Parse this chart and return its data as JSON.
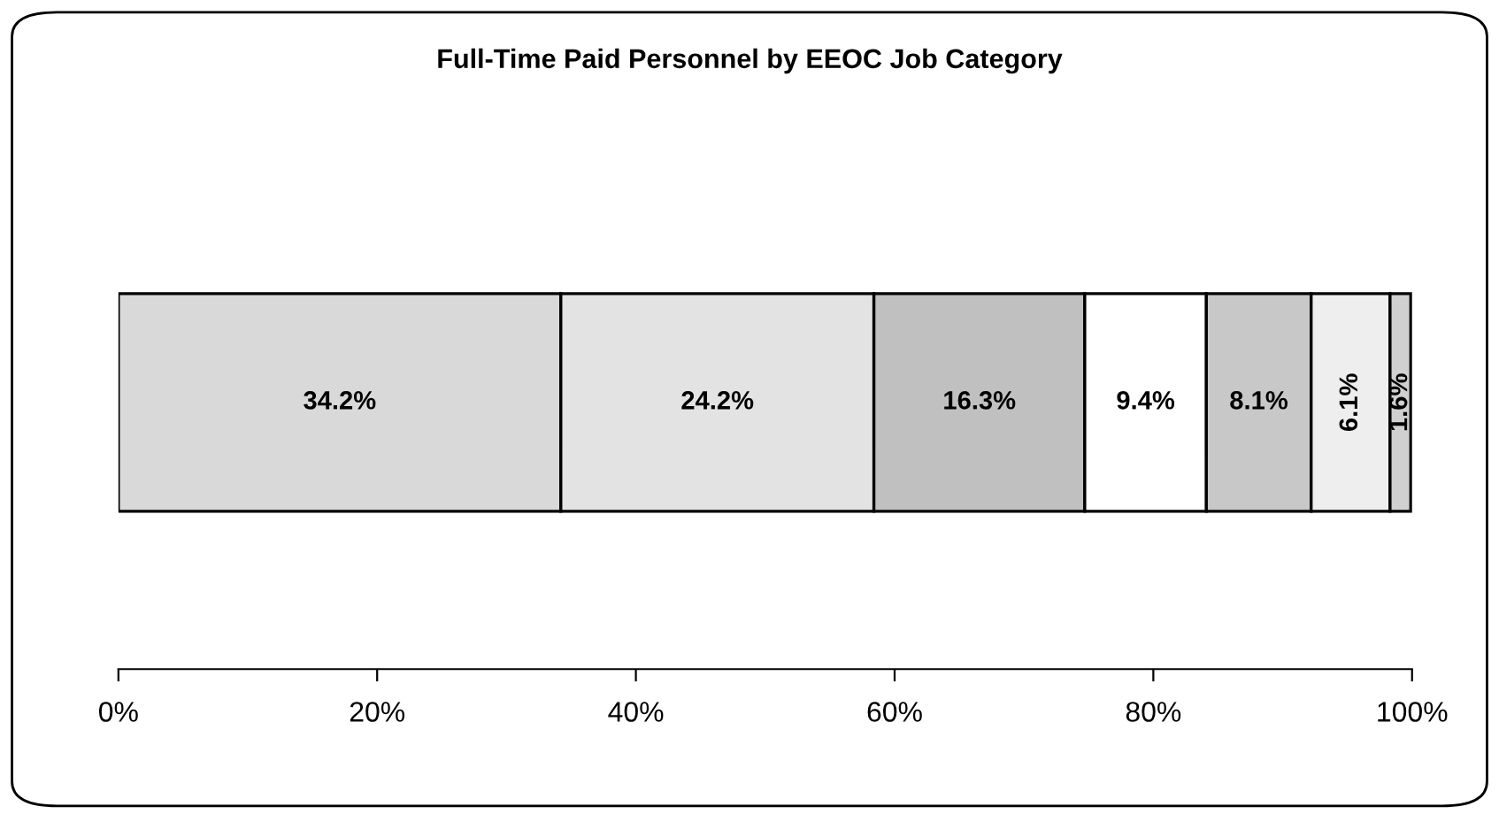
{
  "chart_data": {
    "type": "bar",
    "title": "Full-Time Paid Personnel by EEOC Job Category",
    "orientation": "horizontal",
    "stacked": true,
    "categories": [
      null
    ],
    "series": [
      {
        "color": "#d9d9d9",
        "values": [
          34.2
        ],
        "value_labels": [
          "34.2%"
        ]
      },
      {
        "color": "#e3e3e3",
        "values": [
          24.2
        ],
        "value_labels": [
          "24.2%"
        ]
      },
      {
        "color": "#c0c0c0",
        "values": [
          16.3
        ],
        "value_labels": [
          "16.3%"
        ]
      },
      {
        "color": "#ffffff",
        "values": [
          9.4
        ],
        "value_labels": [
          "9.4%"
        ]
      },
      {
        "color": "#c8c8c8",
        "values": [
          8.1
        ],
        "value_labels": [
          "8.1%"
        ]
      },
      {
        "color": "#eeeeee",
        "values": [
          6.1
        ],
        "value_labels": [
          "6.1%"
        ]
      },
      {
        "color": "#d0d0d0",
        "values": [
          1.6
        ],
        "value_labels": [
          "1.6%"
        ]
      }
    ],
    "grid": false,
    "xlim": [
      0,
      100
    ],
    "xticks": [
      {
        "value": 0,
        "label": "0%"
      },
      {
        "value": 20,
        "label": "20%"
      },
      {
        "value": 40,
        "label": "40%"
      },
      {
        "value": 60,
        "label": "60%"
      },
      {
        "value": 80,
        "label": "80%"
      },
      {
        "value": 100,
        "label": "100%"
      }
    ]
  }
}
